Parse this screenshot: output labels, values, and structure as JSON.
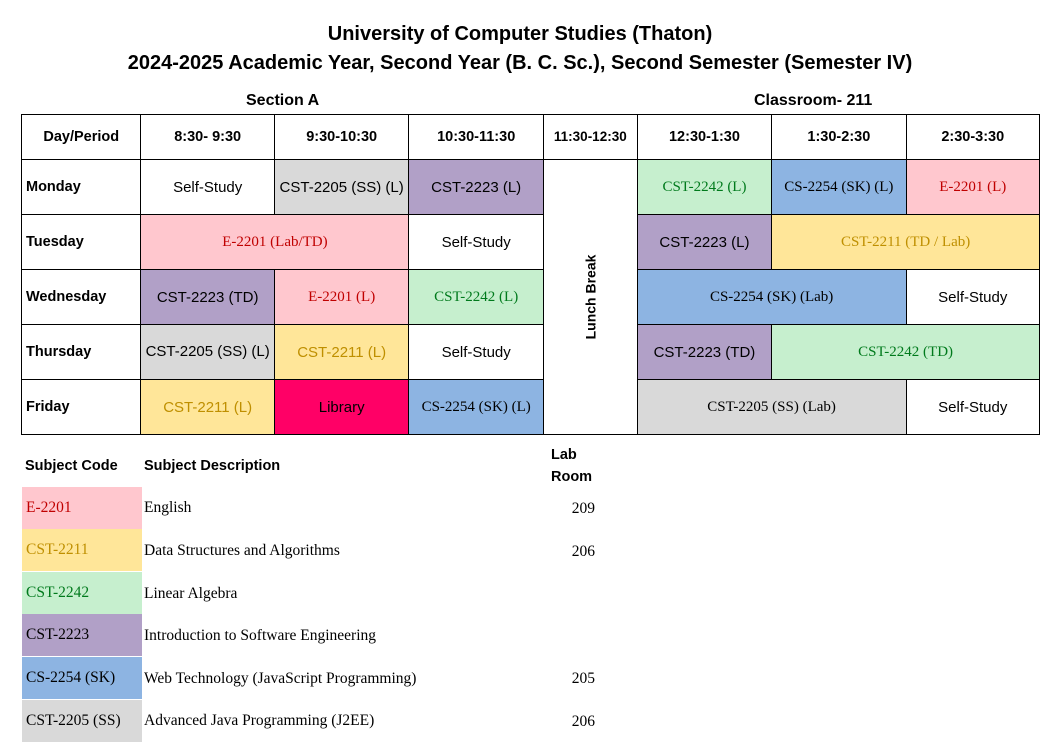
{
  "title": {
    "line1": "University of Computer Studies (Thaton)",
    "line2": "2024-2025 Academic Year, Second Year (B. C. Sc.), Second Semester (Semester IV)"
  },
  "section": "Section A",
  "classroom": "Classroom- 211",
  "timetable": {
    "header": {
      "day_period": "Day/Period",
      "p1": "8:30- 9:30",
      "p2": "9:30-10:30",
      "p3": "10:30-11:30",
      "lunch_time": "11:30-12:30",
      "p4": "12:30-1:30",
      "p5": "1:30-2:30",
      "p6": "2:30-3:30"
    },
    "lunch_label": "Lunch Break",
    "monday": {
      "day": "Monday",
      "p1": "Self-Study",
      "p2": "CST-2205 (SS) (L)",
      "p3": "CST-2223 (L)",
      "p4": "CST-2242 (L)",
      "p5": "CS-2254 (SK) (L)",
      "p6": "E-2201 (L)"
    },
    "tuesday": {
      "day": "Tuesday",
      "p1_2": "E-2201 (Lab/TD)",
      "p3": "Self-Study",
      "p4": "CST-2223 (L)",
      "p5_6": "CST-2211 (TD / Lab)"
    },
    "wednesday": {
      "day": "Wednesday",
      "p1": "CST-2223 (TD)",
      "p2": "E-2201 (L)",
      "p3": "CST-2242 (L)",
      "p4_5": "CS-2254 (SK) (Lab)",
      "p6": "Self-Study"
    },
    "thursday": {
      "day": "Thursday",
      "p1": "CST-2205 (SS) (L)",
      "p2": "CST-2211 (L)",
      "p3": "Self-Study",
      "p4": "CST-2223 (TD)",
      "p5_6": "CST-2242 (TD)"
    },
    "friday": {
      "day": "Friday",
      "p1": "CST-2211 (L)",
      "p2": "Library",
      "p3": "CS-2254 (SK) (L)",
      "p4_5": "CST-2205 (SS) (Lab)",
      "p6": "Self-Study"
    }
  },
  "legend": {
    "header": {
      "code": "Subject Code",
      "description": "Subject Description",
      "lab_room": "Lab Room"
    },
    "subjects": [
      {
        "code": "E-2201",
        "description": "English",
        "lab_room": "209"
      },
      {
        "code": "CST-2211",
        "description": "Data Structures and Algorithms",
        "lab_room": "206"
      },
      {
        "code": "CST-2242",
        "description": "Linear Algebra",
        "lab_room": ""
      },
      {
        "code": "CST-2223",
        "description": "Introduction to Software Engineering",
        "lab_room": ""
      },
      {
        "code": "CS-2254 (SK)",
        "description": "Web Technology (JavaScript Programming)",
        "lab_room": "205"
      },
      {
        "code": "CST-2205 (SS)",
        "description": "Advanced Java Programming (J2EE)",
        "lab_room": "206"
      }
    ]
  },
  "colors": {
    "english": "#ffc7ce",
    "dsa": "#ffe699",
    "linear_algebra": "#c6efce",
    "software_engineering": "#b1a0c7",
    "web_technology": "#8db4e2",
    "java": "#d9d9d9",
    "library": "#ff0066"
  }
}
